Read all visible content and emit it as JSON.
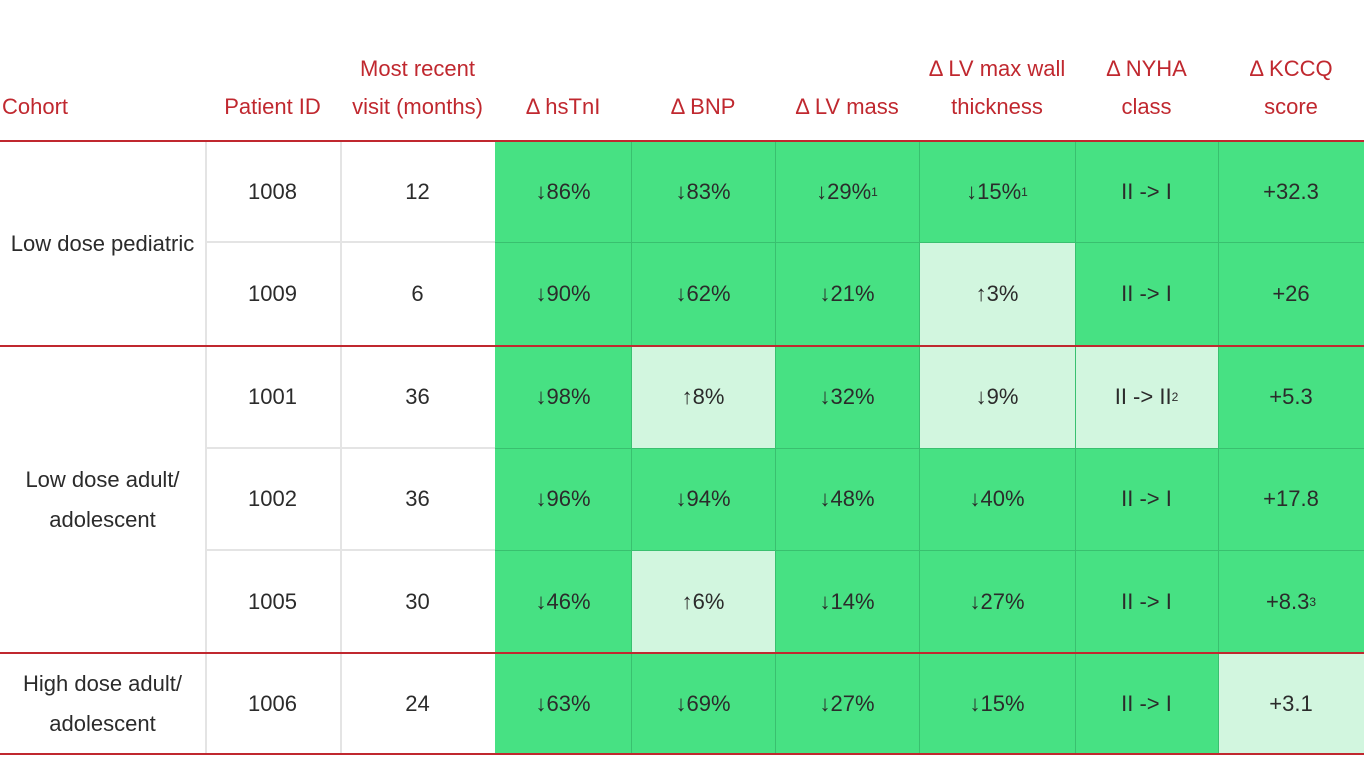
{
  "headers": {
    "cohort": [
      "Cohort"
    ],
    "patient_id": [
      "Patient ID"
    ],
    "visit": [
      "Most recent",
      "visit (months)"
    ],
    "hstni": [
      "Δ hsTnI"
    ],
    "bnp": [
      "Δ BNP"
    ],
    "lv_mass": [
      "Δ LV mass"
    ],
    "lv_wall": [
      "Δ LV max wall",
      "thickness"
    ],
    "nyha": [
      "Δ NYHA",
      "class"
    ],
    "kccq": [
      "Δ KCCQ",
      "score"
    ]
  },
  "cohorts": [
    {
      "label_lines": [
        "Low dose pediatric"
      ]
    },
    {
      "label_lines": [
        "Low dose adult/",
        "adolescent"
      ]
    },
    {
      "label_lines": [
        "High dose adult/",
        "adolescent"
      ]
    }
  ],
  "rows": [
    {
      "patient_id": "1008",
      "visit": "12",
      "hstni": "↓86%",
      "bnp": "↓83%",
      "lv_mass": "↓29%",
      "lv_mass_sup": "1",
      "lv_wall": "↓15%",
      "lv_wall_sup": "1",
      "nyha": "II -> I",
      "nyha_sup": "",
      "kccq": "+32.3",
      "kccq_sup": ""
    },
    {
      "patient_id": "1009",
      "visit": "6",
      "hstni": "↓90%",
      "bnp": "↓62%",
      "lv_mass": "↓21%",
      "lv_mass_sup": "",
      "lv_wall": "↑3%",
      "lv_wall_sup": "",
      "nyha": "II -> I",
      "nyha_sup": "",
      "kccq": "+26",
      "kccq_sup": ""
    },
    {
      "patient_id": "1001",
      "visit": "36",
      "hstni": "↓98%",
      "bnp": "↑8%",
      "lv_mass": "↓32%",
      "lv_mass_sup": "",
      "lv_wall": "↓9%",
      "lv_wall_sup": "",
      "nyha": "II -> II",
      "nyha_sup": "2",
      "kccq": "+5.3",
      "kccq_sup": ""
    },
    {
      "patient_id": "1002",
      "visit": "36",
      "hstni": "↓96%",
      "bnp": "↓94%",
      "lv_mass": "↓48%",
      "lv_mass_sup": "",
      "lv_wall": "↓40%",
      "lv_wall_sup": "",
      "nyha": "II -> I",
      "nyha_sup": "",
      "kccq": "+17.8",
      "kccq_sup": ""
    },
    {
      "patient_id": "1005",
      "visit": "30",
      "hstni": "↓46%",
      "bnp": "↑6%",
      "lv_mass": "↓14%",
      "lv_mass_sup": "",
      "lv_wall": "↓27%",
      "lv_wall_sup": "",
      "nyha": "II -> I",
      "nyha_sup": "",
      "kccq": "+8.3",
      "kccq_sup": "3"
    },
    {
      "patient_id": "1006",
      "visit": "24",
      "hstni": "↓63%",
      "bnp": "↓69%",
      "lv_mass": "↓27%",
      "lv_mass_sup": "",
      "lv_wall": "↓15%",
      "lv_wall_sup": "",
      "nyha": "II -> I",
      "nyha_sup": "",
      "kccq": "+3.1",
      "kccq_sup": ""
    }
  ],
  "shading": {
    "strong": "#47e183",
    "light": "#d2f6df",
    "light_cells": [
      "1-lv_wall",
      "2-bnp",
      "2-lv_wall",
      "2-nyha",
      "4-bnp",
      "5-kccq"
    ]
  },
  "colors": {
    "header_text": "#c0282f",
    "divider": "#c0282f"
  }
}
